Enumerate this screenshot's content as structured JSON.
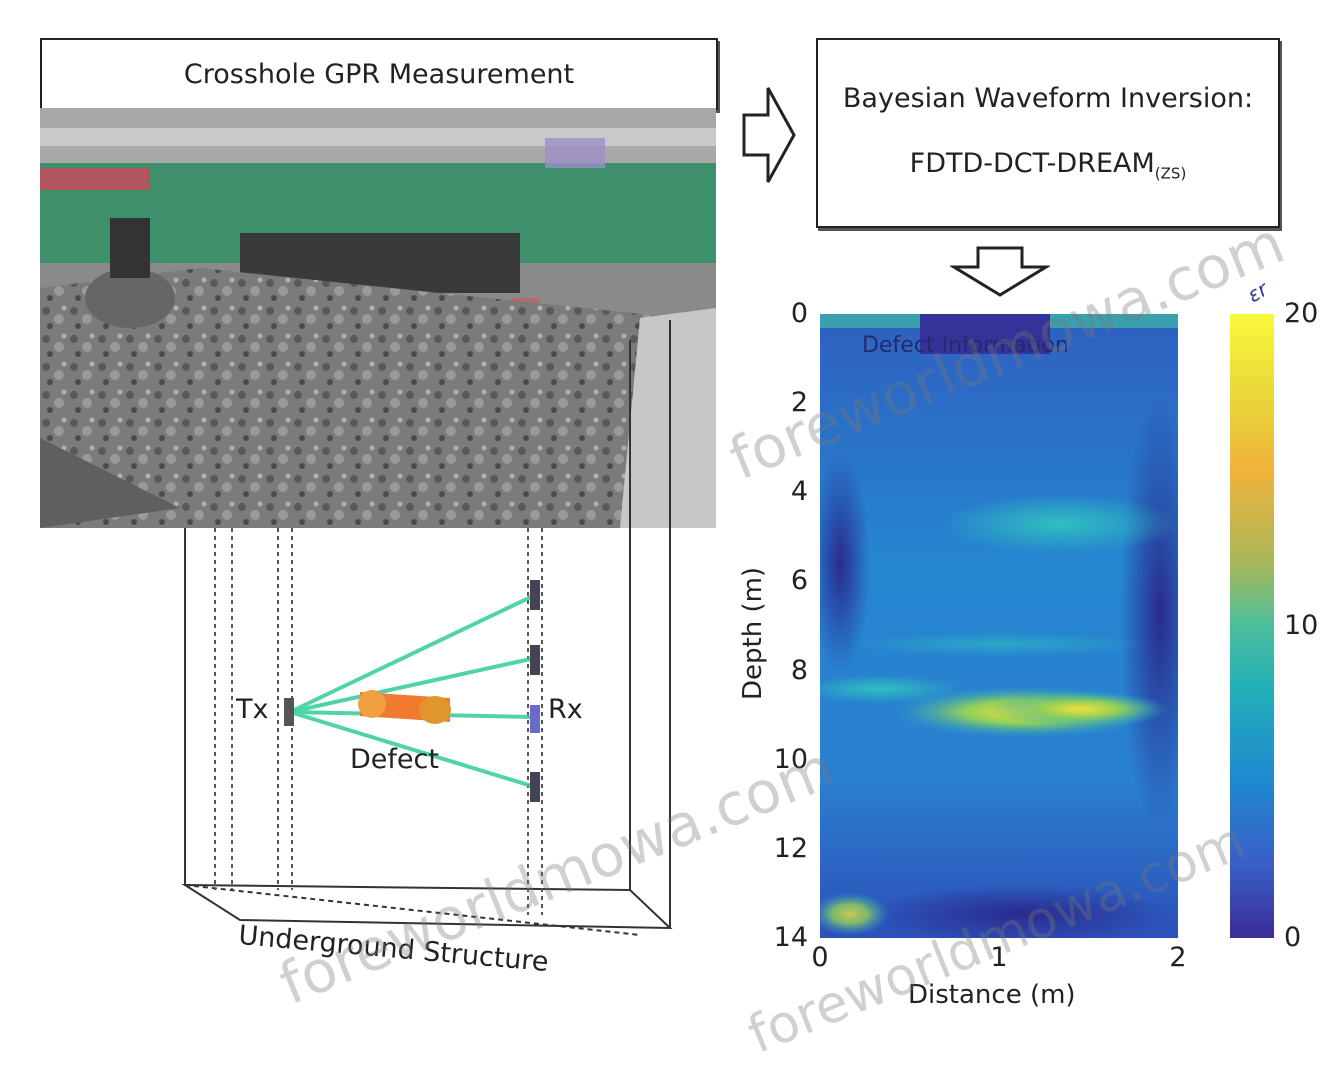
{
  "left_panel": {
    "title": "Crosshole GPR Measurement",
    "labels": {
      "tx": "Tx",
      "rx": "Rx",
      "defect": "Defect",
      "structure": "Underground Structure"
    }
  },
  "right_panel": {
    "title_line1": "Bayesian Waveform Inversion:",
    "title_line2_main": "FDTD-DCT-DREAM",
    "title_line2_sub": "(ZS)",
    "overlay_text": "Defect Information"
  },
  "chart_data": {
    "type": "heatmap",
    "xlabel": "Distance (m)",
    "ylabel": "Depth (m)",
    "x_ticks": [
      "0",
      "1",
      "2"
    ],
    "y_ticks": [
      "0",
      "2",
      "4",
      "6",
      "8",
      "10",
      "12",
      "14"
    ],
    "xlim": [
      0,
      2
    ],
    "ylim": [
      0,
      14
    ],
    "colorbar": {
      "label": "εr",
      "ticks": [
        "20",
        "10",
        "0"
      ],
      "range": [
        0,
        20
      ]
    }
  },
  "watermark": "foreworldmowa.com",
  "colors": {
    "heat_low": "#3b3b9e",
    "heat_mid": "#1f8ac4",
    "heat_high": "#f1e13a",
    "ray": "#33cc99",
    "defect": "#f07a30"
  }
}
